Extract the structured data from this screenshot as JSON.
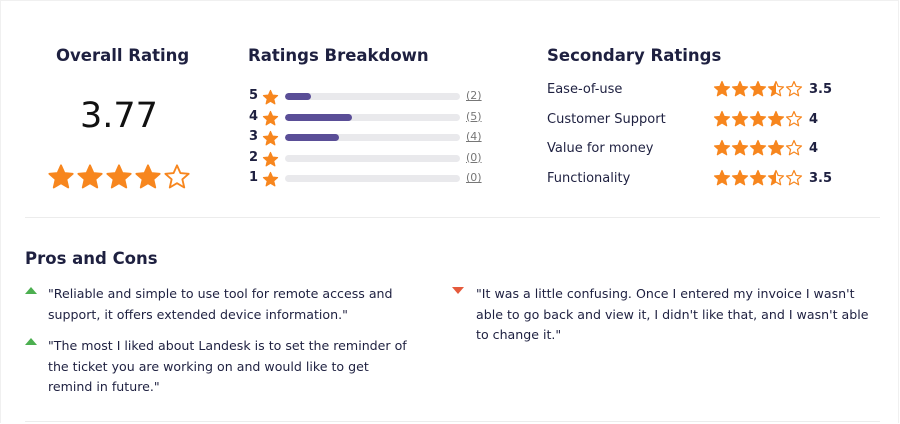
{
  "colors": {
    "star": "#f7861e",
    "bar_fill": "#5a4e97",
    "bar_track": "#e9e9ec",
    "pro": "#4caf50",
    "con": "#e55a3c"
  },
  "overall": {
    "title": "Overall Rating",
    "value": "3.77",
    "stars": 3.77
  },
  "breakdown": {
    "title": "Ratings Breakdown",
    "rows": [
      {
        "label": "5",
        "count": "(2)",
        "fraction": 0.15
      },
      {
        "label": "4",
        "count": "(5)",
        "fraction": 0.38
      },
      {
        "label": "3",
        "count": "(4)",
        "fraction": 0.31
      },
      {
        "label": "2",
        "count": "(0)",
        "fraction": 0
      },
      {
        "label": "1",
        "count": "(0)",
        "fraction": 0
      }
    ]
  },
  "secondary": {
    "title": "Secondary Ratings",
    "rows": [
      {
        "label": "Ease-of-use",
        "value": "3.5",
        "stars": 3.5
      },
      {
        "label": "Customer Support",
        "value": "4",
        "stars": 4
      },
      {
        "label": "Value for money",
        "value": "4",
        "stars": 4
      },
      {
        "label": "Functionality",
        "value": "3.5",
        "stars": 3.5
      }
    ]
  },
  "pros_cons": {
    "title": "Pros and Cons",
    "pros": [
      "\"Reliable and simple to use tool for remote access and support, it offers extended device information.\"",
      "\"The most I liked about Landesk is to set the reminder of the ticket you are working on and would like to get remind in future.\""
    ],
    "cons": [
      "\"It was a little confusing. Once I entered my invoice I wasn't able to go back and view it, I didn't like that, and I wasn't able to change it.\""
    ]
  }
}
